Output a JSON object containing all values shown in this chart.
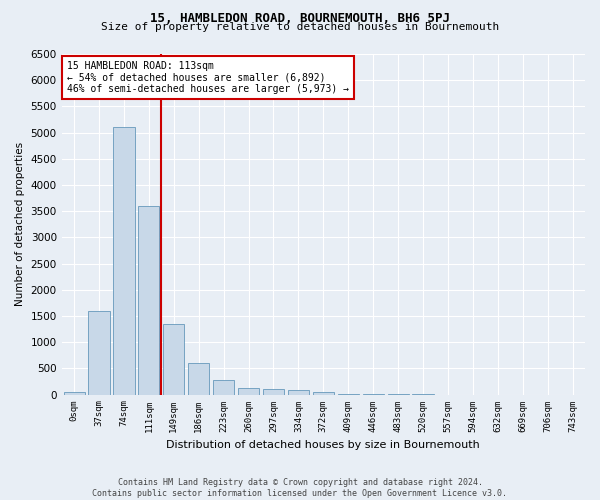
{
  "title": "15, HAMBLEDON ROAD, BOURNEMOUTH, BH6 5PJ",
  "subtitle": "Size of property relative to detached houses in Bournemouth",
  "xlabel": "Distribution of detached houses by size in Bournemouth",
  "ylabel": "Number of detached properties",
  "footer_line1": "Contains HM Land Registry data © Crown copyright and database right 2024.",
  "footer_line2": "Contains public sector information licensed under the Open Government Licence v3.0.",
  "bar_labels": [
    "0sqm",
    "37sqm",
    "74sqm",
    "111sqm",
    "149sqm",
    "186sqm",
    "223sqm",
    "260sqm",
    "297sqm",
    "334sqm",
    "372sqm",
    "409sqm",
    "446sqm",
    "483sqm",
    "520sqm",
    "557sqm",
    "594sqm",
    "632sqm",
    "669sqm",
    "706sqm",
    "743sqm"
  ],
  "bar_values": [
    50,
    1600,
    5100,
    3600,
    1350,
    600,
    270,
    130,
    110,
    80,
    50,
    20,
    10,
    5,
    2,
    1,
    1,
    0,
    0,
    0,
    0
  ],
  "bar_color": "#c8d8e8",
  "bar_edge_color": "#6699bb",
  "ylim": [
    0,
    6500
  ],
  "yticks": [
    0,
    500,
    1000,
    1500,
    2000,
    2500,
    3000,
    3500,
    4000,
    4500,
    5000,
    5500,
    6000,
    6500
  ],
  "property_line_color": "#cc0000",
  "annotation_box_color": "#cc0000",
  "annotation_line1": "15 HAMBLEDON ROAD: 113sqm",
  "annotation_line2": "← 54% of detached houses are smaller (6,892)",
  "annotation_line3": "46% of semi-detached houses are larger (5,973) →",
  "bg_color": "#e8eef5",
  "plot_bg_color": "#e8eef5",
  "grid_color": "#ffffff",
  "title_fontsize": 9,
  "subtitle_fontsize": 8,
  "ylabel_fontsize": 7.5,
  "xlabel_fontsize": 8,
  "ytick_fontsize": 7.5,
  "xtick_fontsize": 6.5
}
